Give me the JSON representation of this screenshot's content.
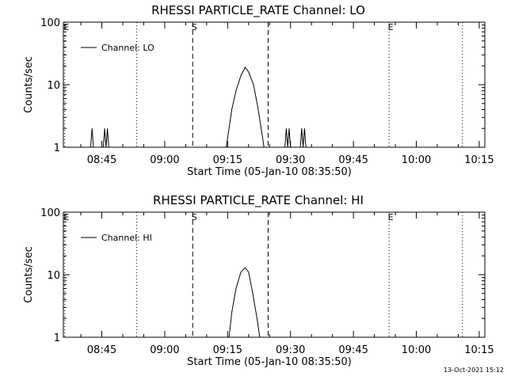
{
  "footer": {
    "timestamp": "13-Oct-2021 15:12"
  },
  "chart_data": [
    {
      "type": "line",
      "title": "RHESSI PARTICLE_RATE Channel: LO",
      "xlabel": "Start Time (05-Jan-10 08:35:50)",
      "ylabel": "Counts/sec",
      "yscale": "log",
      "ylim": [
        1,
        100
      ],
      "yticks": [
        1,
        10,
        100
      ],
      "ytick_labels": [
        "1",
        "10",
        "100"
      ],
      "xlim": [
        "08:35:50",
        "10:16:20"
      ],
      "xticks": [
        "08:45",
        "09:00",
        "09:15",
        "09:30",
        "09:45",
        "10:00",
        "10:15"
      ],
      "legend": {
        "placement": "top-left",
        "label": "Channel: LO"
      },
      "markers": [
        {
          "time": "08:36:10",
          "style": "dotted",
          "label": "E"
        },
        {
          "time": "08:53:20",
          "style": "dotted",
          "label": ""
        },
        {
          "time": "09:06:40",
          "style": "dashed",
          "label": "S"
        },
        {
          "time": "09:24:40",
          "style": "dashed",
          "label": ""
        },
        {
          "time": "09:53:30",
          "style": "dotted",
          "label": "E"
        },
        {
          "time": "10:11:00",
          "style": "dotted",
          "label": ""
        }
      ],
      "series": [
        {
          "name": "Channel: LO",
          "points": [
            [
              "08:42:20",
              1
            ],
            [
              "08:42:40",
              2
            ],
            [
              "08:43:00",
              1
            ],
            [
              "08:45:20",
              1
            ],
            [
              "08:45:40",
              2
            ],
            [
              "08:46:00",
              1
            ],
            [
              "08:46:20",
              2
            ],
            [
              "08:46:40",
              1
            ],
            [
              "09:14:40",
              1
            ],
            [
              "09:15:20",
              2
            ],
            [
              "09:16:00",
              4
            ],
            [
              "09:17:00",
              8
            ],
            [
              "09:18:10",
              14
            ],
            [
              "09:19:10",
              19
            ],
            [
              "09:20:00",
              16
            ],
            [
              "09:21:10",
              10
            ],
            [
              "09:22:10",
              4.5
            ],
            [
              "09:23:00",
              2
            ],
            [
              "09:23:40",
              1
            ],
            [
              "09:28:40",
              1
            ],
            [
              "09:29:00",
              2
            ],
            [
              "09:29:20",
              1
            ],
            [
              "09:29:40",
              2
            ],
            [
              "09:30:00",
              1
            ],
            [
              "09:32:20",
              1
            ],
            [
              "09:32:40",
              2
            ],
            [
              "09:33:00",
              1
            ],
            [
              "09:33:20",
              2
            ],
            [
              "09:33:40",
              1
            ]
          ]
        }
      ]
    },
    {
      "type": "line",
      "title": "RHESSI PARTICLE_RATE Channel: HI",
      "xlabel": "Start Time (05-Jan-10 08:35:50)",
      "ylabel": "Counts/sec",
      "yscale": "log",
      "ylim": [
        1,
        100
      ],
      "yticks": [
        1,
        10,
        100
      ],
      "ytick_labels": [
        "1",
        "10",
        "100"
      ],
      "xlim": [
        "08:35:50",
        "10:16:20"
      ],
      "xticks": [
        "08:45",
        "09:00",
        "09:15",
        "09:30",
        "09:45",
        "10:00",
        "10:15"
      ],
      "legend": {
        "placement": "top-left",
        "label": "Channel: HI"
      },
      "markers": [
        {
          "time": "08:36:10",
          "style": "dotted",
          "label": "E"
        },
        {
          "time": "08:53:20",
          "style": "dotted",
          "label": ""
        },
        {
          "time": "09:06:40",
          "style": "dashed",
          "label": "S"
        },
        {
          "time": "09:24:40",
          "style": "dashed",
          "label": ""
        },
        {
          "time": "09:53:30",
          "style": "dotted",
          "label": "E"
        },
        {
          "time": "10:11:00",
          "style": "dotted",
          "label": ""
        }
      ],
      "series": [
        {
          "name": "Channel: HI",
          "points": [
            [
              "09:15:20",
              1
            ],
            [
              "09:16:00",
              2.5
            ],
            [
              "09:17:00",
              6
            ],
            [
              "09:18:10",
              11
            ],
            [
              "09:19:10",
              13
            ],
            [
              "09:20:00",
              11
            ],
            [
              "09:21:00",
              5
            ],
            [
              "09:22:00",
              2
            ],
            [
              "09:22:40",
              1
            ]
          ]
        }
      ]
    }
  ]
}
